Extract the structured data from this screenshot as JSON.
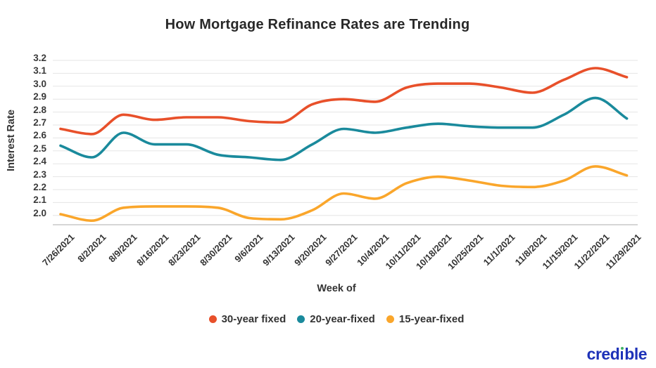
{
  "title": "How Mortgage Refinance Rates are Trending",
  "footer": {
    "brand_pre": "cred",
    "brand_post": "ble"
  },
  "chart_data": {
    "type": "line",
    "title": "How Mortgage Refinance Rates are Trending",
    "xlabel": "Week of",
    "ylabel": "Interest Rate",
    "grid": true,
    "legend_position": "bottom",
    "ylim": [
      1.95,
      3.2
    ],
    "ytick_labels": [
      "3.2",
      "3.1",
      "3.0",
      "2.9",
      "2.8",
      "2.7",
      "2.6",
      "2.5",
      "2.4",
      "2.3",
      "2.2",
      "2.1",
      "2.0"
    ],
    "ytick_values": [
      3.2,
      3.1,
      3.0,
      2.9,
      2.8,
      2.7,
      2.6,
      2.5,
      2.4,
      2.3,
      2.2,
      2.1,
      2.0
    ],
    "x": [
      "7/26/2021",
      "8/2/2021",
      "8/9/2021",
      "8/16/2021",
      "8/23/2021",
      "8/30/2021",
      "9/6/2021",
      "9/13/2021",
      "9/20/2021",
      "9/27/2021",
      "10/4/2021",
      "10/11/2021",
      "10/18/2021",
      "10/25/2021",
      "11/1/2021",
      "11/8/2021",
      "11/15/2021",
      "11/22/2021",
      "11/29/2021"
    ],
    "series": [
      {
        "name": "30-year fixed",
        "color": "#E8502A",
        "values": [
          2.67,
          2.63,
          2.78,
          2.74,
          2.76,
          2.76,
          2.73,
          2.72,
          2.86,
          2.9,
          2.88,
          2.99,
          3.02,
          3.02,
          2.99,
          2.95,
          3.05,
          3.14,
          3.07
        ]
      },
      {
        "name": "20-year-fixed",
        "color": "#1A8A9C",
        "values": [
          2.54,
          2.45,
          2.64,
          2.55,
          2.55,
          2.47,
          2.45,
          2.43,
          2.55,
          2.67,
          2.64,
          2.68,
          2.71,
          2.69,
          2.68,
          2.68,
          2.78,
          2.91,
          2.75
        ]
      },
      {
        "name": "15-year-fixed",
        "color": "#FAA62B",
        "values": [
          2.01,
          1.96,
          2.06,
          2.07,
          2.07,
          2.06,
          1.98,
          1.97,
          2.04,
          2.17,
          2.13,
          2.25,
          2.3,
          2.27,
          2.23,
          2.22,
          2.27,
          2.38,
          2.31
        ]
      }
    ],
    "grid_color": "#e5e5e5",
    "axis_color": "#c9c9c9"
  }
}
